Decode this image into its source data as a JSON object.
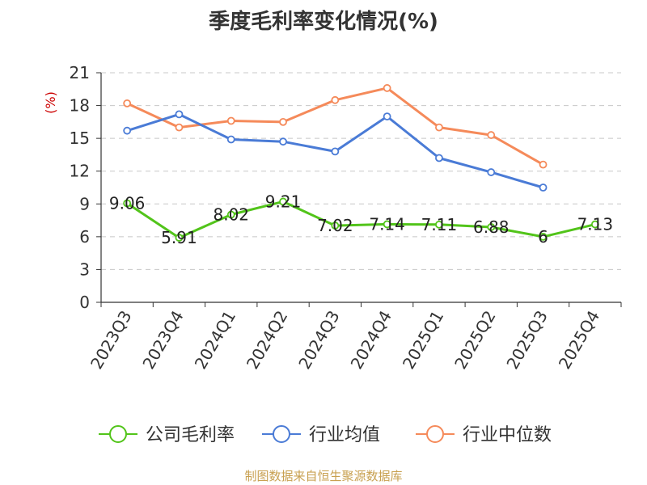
{
  "chart_data": {
    "type": "line",
    "title": "季度毛利率变化情况(%)",
    "ylabel": "(%)",
    "ylim": [
      0,
      21
    ],
    "yticks": [
      0,
      3,
      6,
      9,
      12,
      15,
      18,
      21
    ],
    "grid": true,
    "legend_position": "bottom",
    "categories": [
      "2023Q3",
      "2023Q4",
      "2024Q1",
      "2024Q2",
      "2024Q3",
      "2024Q4",
      "2025Q1",
      "2025Q2",
      "2025Q3",
      "2025Q4"
    ],
    "series": [
      {
        "name": "公司毛利率",
        "color": "#52c41a",
        "values": [
          9.06,
          5.91,
          8.02,
          9.21,
          7.02,
          7.14,
          7.11,
          6.88,
          6,
          7.13
        ],
        "labels": [
          "9.06",
          "5.91",
          "8.02",
          "9.21",
          "7.02",
          "7.14",
          "7.11",
          "6.88",
          "6",
          "7.13"
        ]
      },
      {
        "name": "行业均值",
        "color": "#4a7bd6",
        "values": [
          15.7,
          17.2,
          14.9,
          14.7,
          13.8,
          17.0,
          13.2,
          11.9,
          10.5,
          null
        ]
      },
      {
        "name": "行业中位数",
        "color": "#f58a5a",
        "values": [
          18.2,
          16.0,
          16.6,
          16.5,
          18.5,
          19.6,
          16.0,
          15.3,
          12.6,
          null
        ]
      }
    ]
  },
  "footer": {
    "source": "制图数据来自恒生聚源数据库",
    "source_color": "#c8a050"
  }
}
